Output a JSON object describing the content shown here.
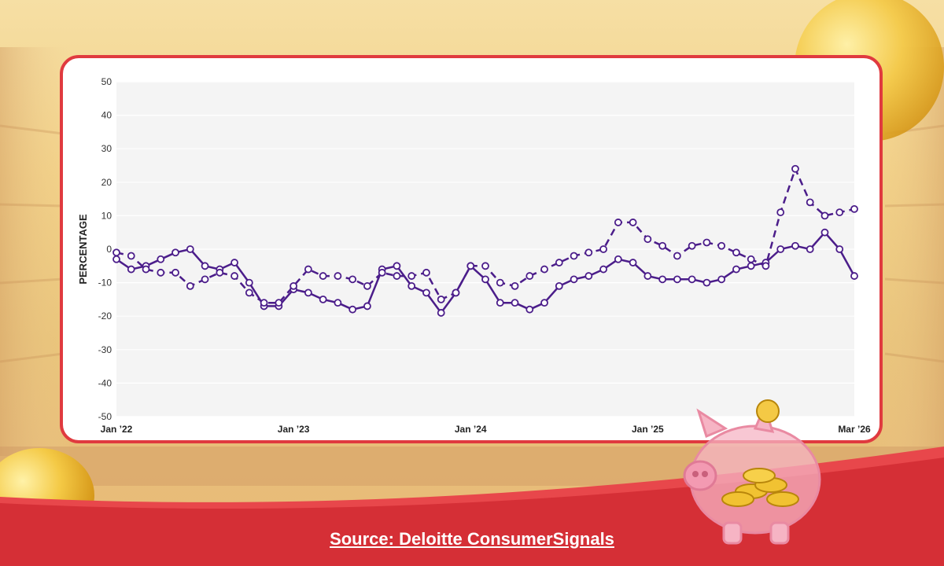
{
  "chart_data": {
    "type": "line",
    "title": "",
    "xlabel": "",
    "ylabel": "PERCENTAGE",
    "ylim": [
      -50,
      50
    ],
    "yticks": [
      50,
      40,
      30,
      20,
      10,
      0,
      -10,
      -20,
      -30,
      -40,
      -50
    ],
    "xtick_labels": [
      "Jan ’22",
      "Jan ’23",
      "Jan ’24",
      "Jan ’25",
      "Mar ’26"
    ],
    "x_dates": [
      "Jan 2022",
      "Feb 2022",
      "Mar 2022",
      "Apr 2022",
      "May 2022",
      "Jun 2022",
      "Jul 2022",
      "Aug 2022",
      "Sep 2022",
      "Oct 2022",
      "Nov 2022",
      "Dec 2022",
      "Jan 2023",
      "Feb 2023",
      "Mar 2023",
      "Apr 2023",
      "May 2023",
      "Jun 2023",
      "Jul 2023",
      "Aug 2023",
      "Sep 2023",
      "Oct 2023",
      "Nov 2023",
      "Dec 2023",
      "Jan 2024",
      "Feb 2024",
      "Mar 2024",
      "Apr 2024",
      "May 2024",
      "Jun 2024",
      "Jul 2024",
      "Aug 2024",
      "Sep 2024",
      "Oct 2024",
      "Nov 2024",
      "Dec 2024",
      "Jan 2025",
      "Feb 2025",
      "Mar 2025",
      "Apr 2025",
      "May 2025",
      "Jun 2025",
      "Jul 2025",
      "Aug 2025",
      "Sep 2025",
      "Oct 2025",
      "Nov 2025",
      "Dec 2025",
      "Jan 2026",
      "Feb 2026",
      "Mar 2026"
    ],
    "grid": true,
    "legend": "none",
    "series": [
      {
        "style": "solid",
        "color": "#4b1d8a",
        "values": [
          -3,
          -6,
          -5,
          -3,
          -1,
          0,
          -5,
          -6,
          -4,
          -10,
          -17,
          -17,
          -12,
          -13,
          -15,
          -16,
          -18,
          -17,
          -6,
          -5,
          -11,
          -13,
          -19,
          -13,
          -5,
          -9,
          -16,
          -16,
          -18,
          -16,
          -11,
          -9,
          -8,
          -6,
          -3,
          -4,
          -8,
          -9,
          -9,
          -9,
          -10,
          -9,
          -6,
          -5,
          -4,
          0,
          1,
          0,
          5,
          0,
          -8
        ]
      },
      {
        "style": "dashed",
        "color": "#4b1d8a",
        "values": [
          -1,
          -2,
          -6,
          -7,
          -7,
          -11,
          -9,
          -7,
          -8,
          -13,
          -16,
          -16,
          -11,
          -6,
          -8,
          -8,
          -9,
          -11,
          -7,
          -8,
          -8,
          -7,
          -15,
          -13,
          -5,
          -5,
          -10,
          -11,
          -8,
          -6,
          -4,
          -2,
          -1,
          0,
          8,
          8,
          3,
          1,
          -2,
          1,
          2,
          1,
          -1,
          -3,
          -5,
          11,
          24,
          14,
          10,
          11,
          12
        ]
      }
    ]
  },
  "source_text": "Source: Deloitte ConsumerSignals",
  "colors": {
    "line": "#4b1d8a",
    "card_border": "#e03a3f",
    "band": "#d9363b"
  }
}
